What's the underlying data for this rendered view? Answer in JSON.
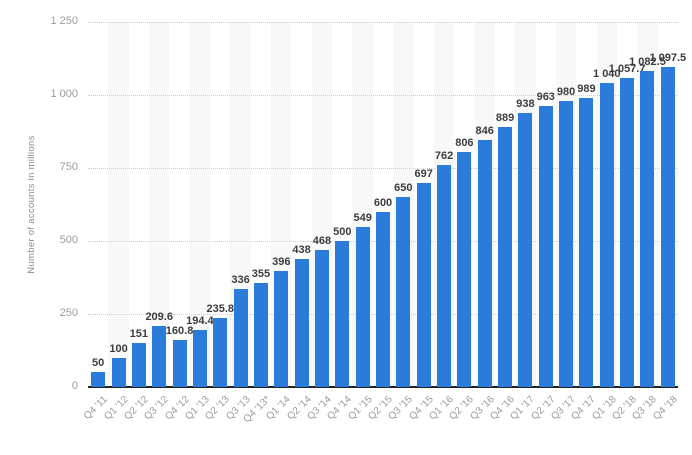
{
  "chart_data": {
    "type": "bar",
    "title": "",
    "xlabel": "",
    "ylabel": "Number of accounts in millions",
    "ylim": [
      0,
      1250
    ],
    "y_tick_values": [
      0,
      250,
      500,
      750,
      1000,
      1250
    ],
    "y_tick_labels": [
      "0",
      "250",
      "500",
      "750",
      "1 000",
      "1 250"
    ],
    "grid": "horizontal-dotted",
    "legend_position": "none",
    "categories": [
      "Q4 '11",
      "Q1 '12",
      "Q2 '12",
      "Q3 '12",
      "Q4 '12",
      "Q1 '13",
      "Q2 '13",
      "Q3 '13",
      "Q4 '13*",
      "Q1 '14",
      "Q2 '14",
      "Q3 '14",
      "Q4 '14",
      "Q1 '15",
      "Q2 '15",
      "Q3 '15",
      "Q4 '15",
      "Q1 '16",
      "Q2 '16",
      "Q3 '16",
      "Q4 '16",
      "Q1 '17",
      "Q2 '17",
      "Q3 '17",
      "Q4 '17",
      "Q1 '18",
      "Q2 '18",
      "Q3 '18",
      "Q4 '18"
    ],
    "values": [
      50,
      100,
      151,
      209.6,
      160.8,
      194.4,
      235.8,
      336,
      355,
      396,
      438,
      468,
      500,
      549,
      600,
      650,
      697,
      762,
      806,
      846,
      889,
      938,
      963,
      980,
      989,
      1040,
      1057.7,
      1082.5,
      1097.5
    ],
    "value_labels": [
      "50",
      "100",
      "151",
      "209.6",
      "160.8",
      "194.4",
      "235.8",
      "336",
      "355",
      "396",
      "438",
      "468",
      "500",
      "549",
      "600",
      "650",
      "697",
      "762",
      "806",
      "846",
      "889",
      "938",
      "963",
      "980",
      "989",
      "1 040",
      "1 057.7",
      "1 082.5",
      "1 097.5"
    ],
    "colors": {
      "bar": "#2b7bda",
      "stripe": "#f8f8f8",
      "gridline": "#cccccc",
      "axis_line": "#222222",
      "value_label": "#3d3d3d",
      "tick_label": "#9b9b9b",
      "axis_title": "#8c8c8c",
      "background": "#ffffff"
    }
  }
}
